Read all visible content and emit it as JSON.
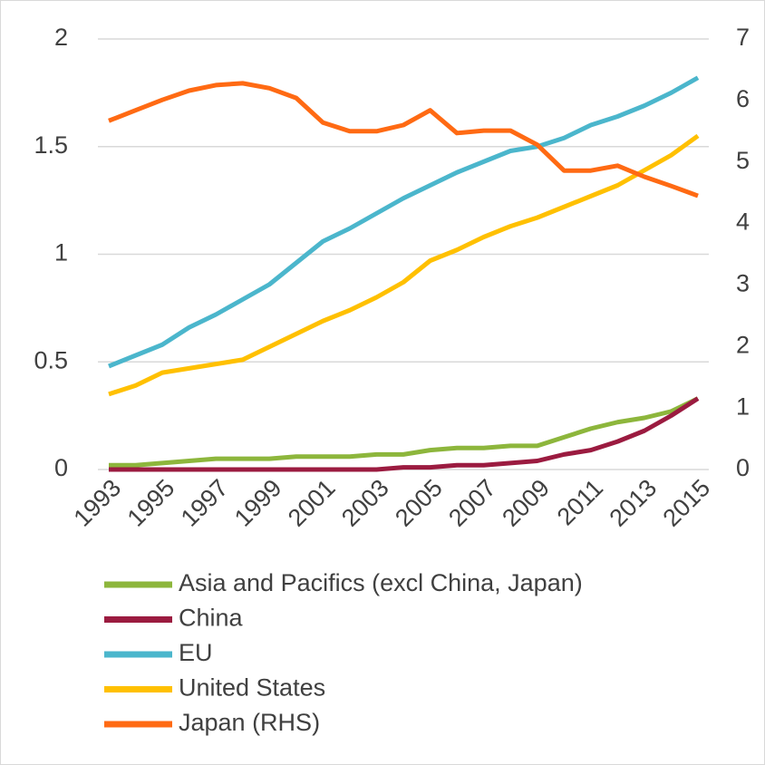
{
  "chart_data": {
    "type": "line",
    "x": [
      1993,
      1994,
      1995,
      1996,
      1997,
      1998,
      1999,
      2000,
      2001,
      2002,
      2003,
      2004,
      2005,
      2006,
      2007,
      2008,
      2009,
      2010,
      2011,
      2012,
      2013,
      2014,
      2015
    ],
    "xlim": [
      1993,
      2015
    ],
    "xticks": [
      1993,
      1995,
      1997,
      1999,
      2001,
      2003,
      2005,
      2007,
      2009,
      2011,
      2013,
      2015
    ],
    "ylim": [
      0,
      2
    ],
    "yticks": [
      0,
      0.5,
      1,
      1.5,
      2
    ],
    "y2lim": [
      0,
      7
    ],
    "y2ticks": [
      0,
      1,
      2,
      3,
      4,
      5,
      6,
      7
    ],
    "grid": true,
    "legend": "bottom",
    "series": [
      {
        "name": "Asia and Pacifics (excl China, Japan)",
        "color": "#8db63c",
        "values": [
          0.02,
          0.02,
          0.03,
          0.04,
          0.05,
          0.05,
          0.05,
          0.06,
          0.06,
          0.06,
          0.07,
          0.07,
          0.09,
          0.1,
          0.1,
          0.11,
          0.11,
          0.15,
          0.19,
          0.22,
          0.24,
          0.27,
          0.33
        ]
      },
      {
        "name": "China",
        "color": "#9b1b40",
        "values": [
          0,
          0,
          0,
          0,
          0,
          0,
          0,
          0,
          0,
          0,
          0,
          0.01,
          0.01,
          0.02,
          0.02,
          0.03,
          0.04,
          0.07,
          0.09,
          0.13,
          0.18,
          0.25,
          0.33
        ]
      },
      {
        "name": "EU",
        "color": "#4bb6cc",
        "values": [
          0.48,
          0.53,
          0.58,
          0.66,
          0.72,
          0.79,
          0.86,
          0.96,
          1.06,
          1.12,
          1.19,
          1.26,
          1.32,
          1.38,
          1.43,
          1.48,
          1.5,
          1.54,
          1.6,
          1.64,
          1.69,
          1.75,
          1.82
        ]
      },
      {
        "name": "United States",
        "color": "#ffc000",
        "values": [
          0.35,
          0.39,
          0.45,
          0.47,
          0.49,
          0.51,
          0.57,
          0.63,
          0.69,
          0.74,
          0.8,
          0.87,
          0.97,
          1.02,
          1.08,
          1.13,
          1.17,
          1.22,
          1.27,
          1.32,
          1.39,
          1.46,
          1.55
        ]
      },
      {
        "name": "Japan (RHS)",
        "color": "#ff6a13",
        "axis": "y2",
        "values": [
          5.67,
          5.84,
          6.01,
          6.16,
          6.25,
          6.28,
          6.2,
          6.04,
          5.64,
          5.5,
          5.5,
          5.6,
          5.84,
          5.47,
          5.51,
          5.51,
          5.28,
          4.86,
          4.86,
          4.94,
          4.76,
          4.61,
          4.45
        ]
      }
    ]
  }
}
